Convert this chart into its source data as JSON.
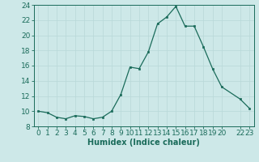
{
  "x": [
    0,
    1,
    2,
    3,
    4,
    5,
    6,
    7,
    8,
    9,
    10,
    11,
    12,
    13,
    14,
    15,
    16,
    17,
    18,
    19,
    20,
    22,
    23
  ],
  "y": [
    10.0,
    9.8,
    9.2,
    9.0,
    9.4,
    9.3,
    9.0,
    9.2,
    10.0,
    12.2,
    15.8,
    15.6,
    17.8,
    21.5,
    22.4,
    23.8,
    21.2,
    21.2,
    18.5,
    15.6,
    13.2,
    11.6,
    10.4
  ],
  "line_color": "#1a6b5a",
  "marker_color": "#1a6b5a",
  "bg_color": "#cde8e8",
  "grid_color": "#b8d8d8",
  "xlabel": "Humidex (Indice chaleur)",
  "ylim": [
    8,
    24
  ],
  "xlim": [
    -0.5,
    23.5
  ],
  "yticks": [
    8,
    10,
    12,
    14,
    16,
    18,
    20,
    22,
    24
  ],
  "xtick_positions": [
    0,
    1,
    2,
    3,
    4,
    5,
    6,
    7,
    8,
    9,
    10,
    11,
    12,
    13,
    14,
    15,
    16,
    17,
    18,
    19,
    20,
    22,
    23
  ],
  "xtick_labels": [
    "0",
    "1",
    "2",
    "3",
    "4",
    "5",
    "6",
    "7",
    "8",
    "9",
    "10",
    "11",
    "12",
    "13",
    "14",
    "15",
    "16",
    "17",
    "18",
    "19",
    "20",
    "22",
    "23"
  ],
  "xlabel_fontsize": 7,
  "tick_fontsize": 6.5
}
